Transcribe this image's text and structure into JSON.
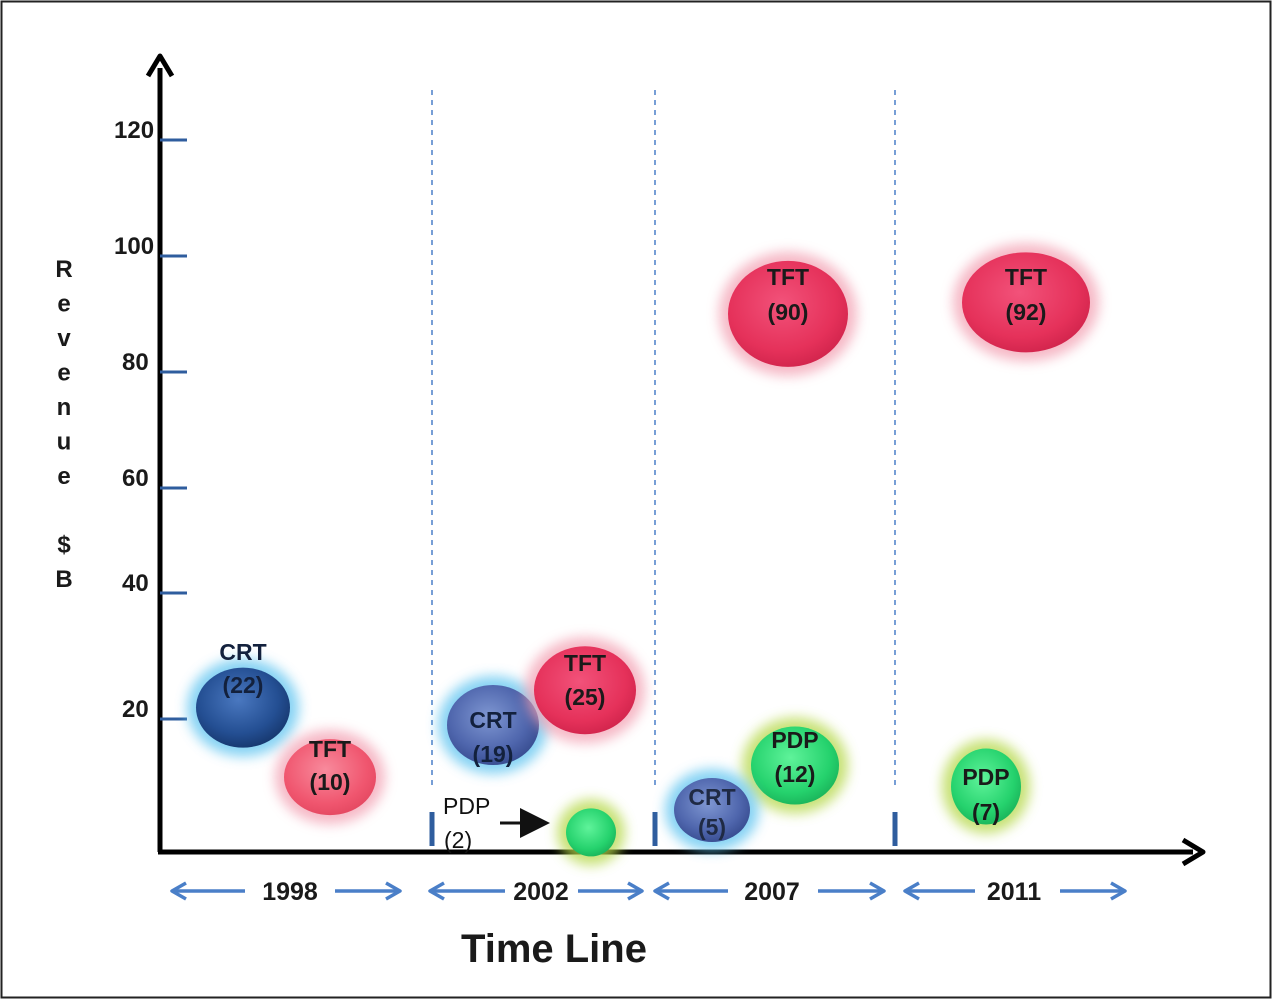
{
  "chart_data": {
    "type": "scatter",
    "xlabel": "Time Line",
    "ylabel": "Revenue $B",
    "ylim": [
      0,
      125
    ],
    "yticks": [
      "20",
      "40",
      "60",
      "80",
      "100",
      "120"
    ],
    "periods": [
      "1998",
      "2002",
      "2007",
      "2011"
    ],
    "grid": false,
    "colors": {
      "CRT": "#1f4e8c",
      "TFT": "#e8345a",
      "PDP": "#2ecc71"
    },
    "bubbles": [
      {
        "period": "1998",
        "tech": "CRT",
        "name": "CRT",
        "value": 22,
        "value_label": "(22)"
      },
      {
        "period": "1998",
        "tech": "TFT",
        "name": "TFT",
        "value": 10,
        "value_label": "(10)"
      },
      {
        "period": "2002",
        "tech": "CRT",
        "name": "CRT",
        "value": 19,
        "value_label": "(19)"
      },
      {
        "period": "2002",
        "tech": "TFT",
        "name": "TFT",
        "value": 25,
        "value_label": "(25)"
      },
      {
        "period": "2002",
        "tech": "PDP",
        "name": "",
        "value": 2,
        "value_label": ""
      },
      {
        "period": "2007",
        "tech": "TFT",
        "name": "TFT",
        "value": 90,
        "value_label": "(90)"
      },
      {
        "period": "2007",
        "tech": "PDP",
        "name": "PDP",
        "value": 12,
        "value_label": "(12)"
      },
      {
        "period": "2007",
        "tech": "CRT",
        "name": "CRT",
        "value": 5,
        "value_label": "(5)"
      },
      {
        "period": "2011",
        "tech": "TFT",
        "name": "TFT",
        "value": 92,
        "value_label": "(92)"
      },
      {
        "period": "2011",
        "tech": "PDP",
        "name": "PDP",
        "value": 7,
        "value_label": "(7)"
      }
    ],
    "annotations": [
      {
        "text_line1": "PDP",
        "text_line2": "(2)",
        "points_to": "2002 PDP"
      }
    ]
  }
}
